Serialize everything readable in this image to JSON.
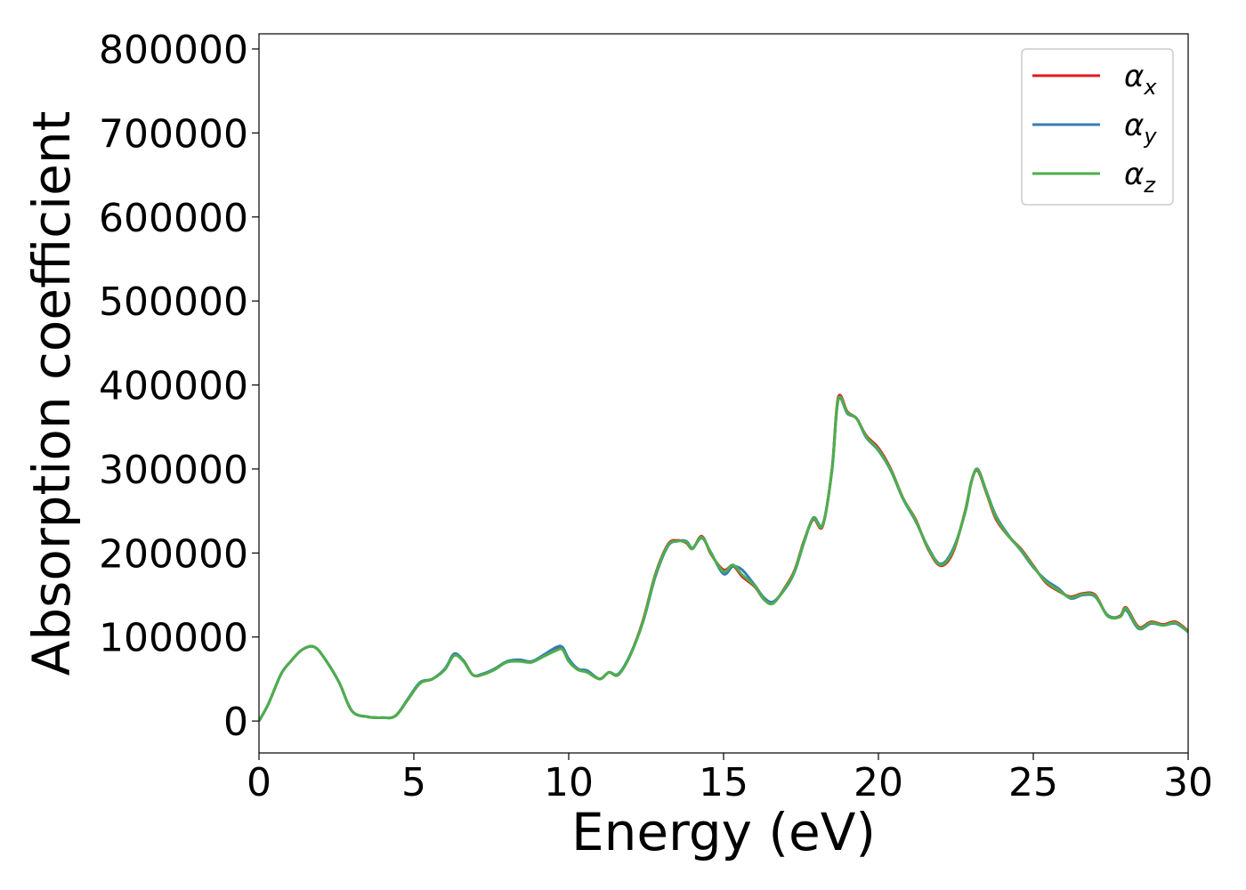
{
  "chart_data": {
    "type": "line",
    "title": "",
    "xlabel": "Energy (eV)",
    "ylabel": "Absorption coefficient",
    "xlim": [
      0,
      30
    ],
    "ylim": [
      -38000,
      818000
    ],
    "xticks": [
      0,
      5,
      10,
      15,
      20,
      25,
      30
    ],
    "yticks": [
      0,
      100000,
      200000,
      300000,
      400000,
      500000,
      600000,
      700000,
      800000
    ],
    "xtick_labels": [
      "0",
      "5",
      "10",
      "15",
      "20",
      "25",
      "30"
    ],
    "ytick_labels": [
      "0",
      "100000",
      "200000",
      "300000",
      "400000",
      "500000",
      "600000",
      "700000",
      "800000"
    ],
    "grid": false,
    "legend_position": "top-right",
    "series": [
      {
        "name": "αx",
        "base": "α",
        "sub": "x",
        "color": "#e41a1c",
        "x": [
          0,
          0.3,
          0.7,
          1.0,
          1.4,
          1.8,
          2.2,
          2.6,
          3.0,
          3.5,
          4.0,
          4.4,
          4.8,
          5.2,
          5.6,
          6.0,
          6.3,
          6.6,
          6.9,
          7.2,
          7.6,
          8.0,
          8.4,
          8.8,
          9.2,
          9.6,
          9.8,
          10.0,
          10.3,
          10.6,
          11.0,
          11.3,
          11.6,
          12.0,
          12.4,
          12.8,
          13.2,
          13.5,
          13.8,
          14.0,
          14.3,
          14.6,
          15.0,
          15.3,
          15.6,
          16.0,
          16.3,
          16.6,
          17.0,
          17.3,
          17.6,
          17.9,
          18.2,
          18.5,
          18.7,
          19.0,
          19.3,
          19.6,
          20.0,
          20.4,
          20.8,
          21.2,
          21.6,
          22.0,
          22.4,
          22.8,
          23.0,
          23.2,
          23.5,
          23.8,
          24.2,
          24.6,
          25.0,
          25.4,
          25.8,
          26.2,
          26.6,
          27.0,
          27.4,
          27.8,
          28.0,
          28.4,
          28.8,
          29.2,
          29.6,
          30.0
        ],
        "y": [
          0,
          20000,
          55000,
          70000,
          85000,
          88000,
          70000,
          45000,
          12000,
          5000,
          4000,
          6000,
          25000,
          45000,
          50000,
          62000,
          78000,
          72000,
          55000,
          55000,
          62000,
          70000,
          72000,
          70000,
          78000,
          85000,
          86000,
          72000,
          62000,
          58000,
          50000,
          58000,
          55000,
          80000,
          120000,
          175000,
          210000,
          215000,
          212000,
          205000,
          220000,
          198000,
          180000,
          185000,
          172000,
          160000,
          145000,
          140000,
          160000,
          180000,
          215000,
          240000,
          232000,
          300000,
          385000,
          368000,
          360000,
          340000,
          325000,
          300000,
          265000,
          240000,
          205000,
          185000,
          200000,
          250000,
          285000,
          298000,
          270000,
          240000,
          220000,
          205000,
          185000,
          165000,
          155000,
          148000,
          152000,
          150000,
          125000,
          125000,
          135000,
          112000,
          118000,
          115000,
          118000,
          107000
        ]
      },
      {
        "name": "αy",
        "base": "α",
        "sub": "y",
        "color": "#377eb8",
        "x": [
          0,
          0.3,
          0.7,
          1.0,
          1.4,
          1.8,
          2.2,
          2.6,
          3.0,
          3.5,
          4.0,
          4.4,
          4.8,
          5.2,
          5.6,
          6.0,
          6.3,
          6.6,
          6.9,
          7.2,
          7.6,
          8.0,
          8.4,
          8.8,
          9.2,
          9.6,
          9.8,
          10.0,
          10.3,
          10.6,
          11.0,
          11.3,
          11.6,
          12.0,
          12.4,
          12.8,
          13.2,
          13.5,
          13.8,
          14.0,
          14.3,
          14.6,
          15.0,
          15.3,
          15.6,
          16.0,
          16.3,
          16.6,
          17.0,
          17.3,
          17.6,
          17.9,
          18.2,
          18.5,
          18.7,
          19.0,
          19.3,
          19.6,
          20.0,
          20.4,
          20.8,
          21.2,
          21.6,
          22.0,
          22.4,
          22.8,
          23.0,
          23.2,
          23.5,
          23.8,
          24.2,
          24.6,
          25.0,
          25.4,
          25.8,
          26.2,
          26.6,
          27.0,
          27.4,
          27.8,
          28.0,
          28.4,
          28.8,
          29.2,
          29.6,
          30.0
        ],
        "y": [
          0,
          20000,
          55000,
          70000,
          85000,
          88000,
          70000,
          45000,
          12000,
          5000,
          4000,
          6000,
          26000,
          46000,
          50000,
          62000,
          80000,
          72000,
          55000,
          56000,
          62000,
          71000,
          73000,
          71000,
          79000,
          88000,
          88000,
          74000,
          62000,
          60000,
          50000,
          58000,
          56000,
          80000,
          118000,
          172000,
          208000,
          214000,
          214000,
          206000,
          218000,
          200000,
          175000,
          184000,
          180000,
          162000,
          147000,
          142000,
          158000,
          178000,
          213000,
          242000,
          234000,
          298000,
          382000,
          366000,
          360000,
          338000,
          322000,
          298000,
          264000,
          238000,
          207000,
          187000,
          204000,
          248000,
          284000,
          300000,
          272000,
          244000,
          221000,
          203000,
          183000,
          168000,
          158000,
          146000,
          150000,
          148000,
          126000,
          124000,
          132000,
          110000,
          116000,
          114000,
          116000,
          106000
        ]
      },
      {
        "name": "αz",
        "base": "α",
        "sub": "z",
        "color": "#4daf4a",
        "x": [
          0,
          0.3,
          0.7,
          1.0,
          1.4,
          1.8,
          2.2,
          2.6,
          3.0,
          3.5,
          4.0,
          4.4,
          4.8,
          5.2,
          5.6,
          6.0,
          6.3,
          6.6,
          6.9,
          7.2,
          7.6,
          8.0,
          8.4,
          8.8,
          9.2,
          9.6,
          9.8,
          10.0,
          10.3,
          10.6,
          11.0,
          11.3,
          11.6,
          12.0,
          12.4,
          12.8,
          13.2,
          13.5,
          13.8,
          14.0,
          14.3,
          14.6,
          15.0,
          15.3,
          15.6,
          16.0,
          16.3,
          16.6,
          17.0,
          17.3,
          17.6,
          17.9,
          18.2,
          18.5,
          18.7,
          19.0,
          19.3,
          19.6,
          20.0,
          20.4,
          20.8,
          21.2,
          21.6,
          22.0,
          22.4,
          22.8,
          23.0,
          23.2,
          23.5,
          23.8,
          24.2,
          24.6,
          25.0,
          25.4,
          25.8,
          26.2,
          26.6,
          27.0,
          27.4,
          27.8,
          28.0,
          28.4,
          28.8,
          29.2,
          29.6,
          30.0
        ],
        "y": [
          0,
          20000,
          55000,
          70000,
          85000,
          88000,
          70000,
          45000,
          12000,
          5000,
          4000,
          6000,
          25000,
          45000,
          50000,
          61000,
          78000,
          71000,
          55000,
          55000,
          61000,
          70000,
          71000,
          70000,
          77000,
          84000,
          85000,
          71000,
          61000,
          58000,
          50000,
          58000,
          55000,
          79000,
          119000,
          174000,
          209000,
          214000,
          213000,
          205000,
          219000,
          199000,
          178000,
          186000,
          174000,
          161000,
          145000,
          140000,
          159000,
          179000,
          214000,
          241000,
          233000,
          299000,
          383000,
          367000,
          360000,
          339000,
          323000,
          299000,
          265000,
          239000,
          206000,
          186000,
          202000,
          249000,
          285000,
          299000,
          271000,
          242000,
          220000,
          204000,
          184000,
          166000,
          156000,
          147000,
          151000,
          149000,
          125000,
          124000,
          134000,
          111000,
          117000,
          114000,
          117000,
          106000
        ]
      }
    ]
  },
  "colors": {
    "axis": "#000000",
    "legend_border": "#cccccc"
  }
}
